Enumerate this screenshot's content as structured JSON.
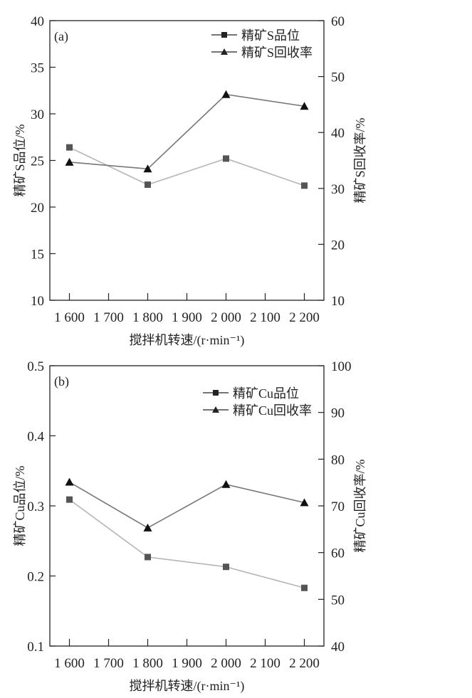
{
  "chart_data": [
    {
      "type": "line",
      "panel_label": "(a)",
      "x": [
        1600,
        1800,
        2000,
        2200
      ],
      "xlim": [
        1550,
        2250
      ],
      "xticks": [
        1600,
        1700,
        1800,
        1900,
        2000,
        2100,
        2200
      ],
      "xtick_labels": [
        "1 600",
        "1 700",
        "1 800",
        "1 900",
        "2 000",
        "2 100",
        "2 200"
      ],
      "xlabel": "搅拌机转速/(r·min⁻¹)",
      "ylabel": "精矿S品位/%",
      "ylim": [
        10,
        40
      ],
      "yticks": [
        10,
        15,
        20,
        25,
        30,
        35,
        40
      ],
      "y2label": "精矿S回收率/%",
      "y2lim": [
        10,
        60
      ],
      "y2ticks": [
        10,
        20,
        30,
        40,
        50,
        60
      ],
      "legend_position": "top-right",
      "series": [
        {
          "name": "精矿S品位",
          "axis": "left",
          "marker": "square",
          "line_color": "#b5b5b5",
          "marker_color": "#555555",
          "values": [
            26.4,
            22.4,
            25.2,
            22.3
          ]
        },
        {
          "name": "精矿S回收率",
          "axis": "right",
          "marker": "triangle",
          "line_color": "#777777",
          "marker_color": "#111111",
          "values": [
            34.7,
            33.5,
            46.8,
            44.7
          ]
        }
      ]
    },
    {
      "type": "line",
      "panel_label": "(b)",
      "x": [
        1600,
        1800,
        2000,
        2200
      ],
      "xlim": [
        1550,
        2250
      ],
      "xticks": [
        1600,
        1700,
        1800,
        1900,
        2000,
        2100,
        2200
      ],
      "xtick_labels": [
        "1 600",
        "1 700",
        "1 800",
        "1 900",
        "2 000",
        "2 100",
        "2 200"
      ],
      "xlabel": "搅拌机转速/(r·min⁻¹)",
      "ylabel": "精矿Cu品位/%",
      "ylim": [
        0.1,
        0.5
      ],
      "yticks": [
        0.1,
        0.2,
        0.3,
        0.4,
        0.5
      ],
      "y2label": "精矿Cu回收率/%",
      "y2lim": [
        40,
        100
      ],
      "y2ticks": [
        40,
        50,
        60,
        70,
        80,
        90,
        100
      ],
      "legend_position": "top-right",
      "series": [
        {
          "name": "精矿Cu品位",
          "axis": "left",
          "marker": "square",
          "line_color": "#b5b5b5",
          "marker_color": "#555555",
          "values": [
            0.309,
            0.227,
            0.213,
            0.183
          ]
        },
        {
          "name": "精矿Cu回收率",
          "axis": "right",
          "marker": "triangle",
          "line_color": "#777777",
          "marker_color": "#111111",
          "values": [
            75.1,
            65.3,
            74.6,
            70.7
          ]
        }
      ]
    }
  ]
}
